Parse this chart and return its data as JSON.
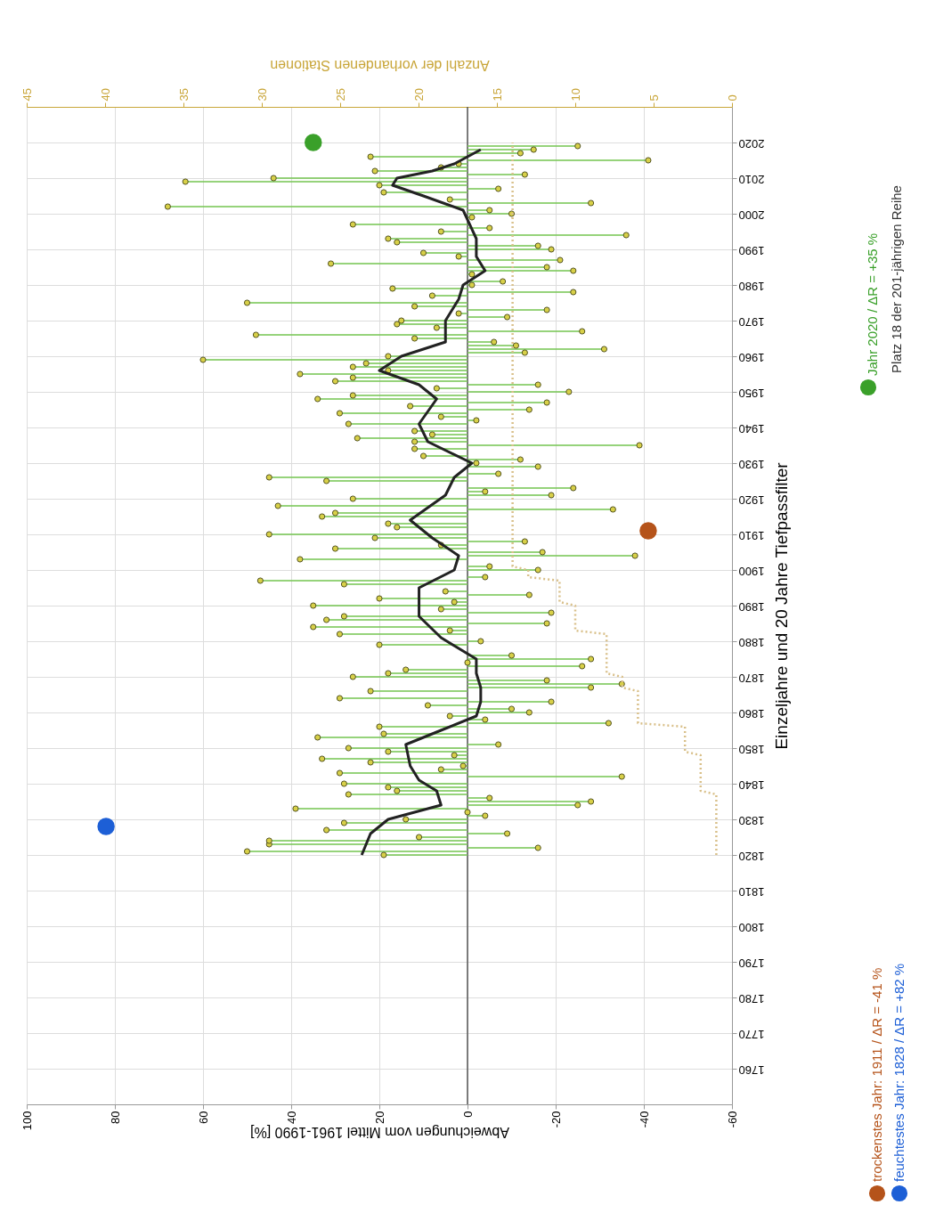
{
  "chart_data": {
    "type": "lollipop",
    "orientation": "horizontal",
    "ylabel": "Einzeljahre und 20 Jahre Tiefpassfilter",
    "xlabel": "Abweichungen vom Mittel 1961-1990 [%]",
    "x2label": "Anzahl der vorhandenen Stationen",
    "ylim": [
      1750,
      2030
    ],
    "yticks": [
      1760,
      1770,
      1780,
      1790,
      1800,
      1810,
      1820,
      1830,
      1840,
      1850,
      1860,
      1870,
      1880,
      1890,
      1900,
      1910,
      1920,
      1930,
      1940,
      1950,
      1960,
      1970,
      1980,
      1990,
      2000,
      2010,
      2020
    ],
    "xlim": [
      100,
      -60
    ],
    "xticks": [
      100,
      80,
      60,
      40,
      20,
      0,
      -20,
      -40,
      -60
    ],
    "x2lim": [
      45,
      0
    ],
    "x2ticks": [
      45,
      40,
      35,
      30,
      25,
      20,
      15,
      10,
      5,
      0
    ],
    "grid": true,
    "legend": "right",
    "ref_lines": [
      {
        "axis": "x",
        "value": 0,
        "color": "#555555"
      }
    ],
    "annotations": [
      "Platz 18 der 201-jährigen Reihe"
    ],
    "series": [
      {
        "color": "#d8d048",
        "marker": "circle",
        "x": [
          1820,
          1821,
          1822,
          1823,
          1824,
          1825,
          1826,
          1827,
          1829,
          1830,
          1831,
          1832,
          1833,
          1834,
          1835,
          1836,
          1837,
          1838,
          1839,
          1840,
          1842,
          1843,
          1844,
          1845,
          1846,
          1847,
          1848,
          1849,
          1850,
          1851,
          1853,
          1854,
          1856,
          1857,
          1858,
          1859,
          1860,
          1861,
          1862,
          1863,
          1864,
          1866,
          1867,
          1868,
          1869,
          1870,
          1871,
          1872,
          1873,
          1874,
          1875,
          1876,
          1879,
          1880,
          1882,
          1883,
          1884,
          1885,
          1886,
          1887,
          1888,
          1889,
          1890,
          1891,
          1892,
          1893,
          1894,
          1896,
          1897,
          1898,
          1900,
          1901,
          1903,
          1904,
          1905,
          1906,
          1907,
          1908,
          1909,
          1910,
          1912,
          1913,
          1915,
          1916,
          1917,
          1918,
          1920,
          1921,
          1922,
          1923,
          1925,
          1926,
          1927,
          1929,
          1930,
          1931,
          1932,
          1934,
          1935,
          1936,
          1937,
          1938,
          1939,
          1941,
          1942,
          1943,
          1944,
          1945,
          1946,
          1947,
          1948,
          1949,
          1950,
          1951,
          1952,
          1953,
          1954,
          1955,
          1956,
          1957,
          1958,
          1959,
          1960,
          1961,
          1962,
          1963,
          1964,
          1965,
          1966,
          1967,
          1968,
          1969,
          1970,
          1971,
          1972,
          1973,
          1974,
          1975,
          1977,
          1978,
          1979,
          1980,
          1981,
          1983,
          1984,
          1985,
          1986,
          1987,
          1988,
          1989,
          1990,
          1991,
          1992,
          1993,
          1994,
          1995,
          1996,
          1997,
          1999,
          2000,
          2001,
          2002,
          2003,
          2004,
          2006,
          2007,
          2008,
          2009,
          2010,
          2011,
          2012,
          2013,
          2014,
          2015,
          2016,
          2017,
          2018,
          2019
        ],
        "values": [
          19,
          50,
          -16,
          45,
          45,
          11,
          -9,
          32,
          28,
          14,
          -4,
          0,
          39,
          -25,
          -28,
          -5,
          27,
          16,
          18,
          28,
          -35,
          29,
          6,
          1,
          22,
          33,
          3,
          18,
          27,
          -7,
          34,
          19,
          20,
          -32,
          -4,
          4,
          -14,
          -10,
          9,
          -19,
          29,
          22,
          -28,
          -35,
          -18,
          26,
          18,
          14,
          -26,
          0,
          -28,
          -10,
          20,
          -3,
          29,
          4,
          35,
          -18,
          32,
          28,
          -19,
          6,
          35,
          3,
          20,
          -14,
          5,
          28,
          47,
          -4,
          -16,
          -5,
          38,
          -38,
          -17,
          30,
          6,
          -13,
          21,
          45,
          16,
          18,
          33,
          30,
          -33,
          43,
          26,
          -19,
          -4,
          -24,
          32,
          45,
          -7,
          -16,
          -2,
          -12,
          10,
          12,
          -39,
          12,
          25,
          8,
          12,
          27,
          -2,
          6,
          29,
          -14,
          13,
          -18,
          34,
          26,
          -23,
          7,
          -16,
          30,
          26,
          38,
          18,
          26,
          23,
          60,
          18,
          -13,
          -31,
          -11,
          -6,
          12,
          48,
          -26,
          7,
          16,
          15,
          -9,
          2,
          -18,
          12,
          50,
          8,
          -24,
          17,
          -1,
          -8,
          -1,
          -24,
          -18,
          31,
          -21,
          2,
          10,
          -19,
          -16,
          16,
          18,
          -36,
          6,
          -5,
          26,
          -1,
          -10,
          -5,
          68,
          -28,
          4,
          19,
          -7,
          20,
          64,
          44,
          -13,
          21,
          6,
          2,
          -41,
          22,
          -12,
          -15,
          -25
        ]
      },
      {
        "type": "line",
        "color": "#222222",
        "line_style": "solid",
        "x": [
          1820,
          1823,
          1826,
          1828,
          1830,
          1834,
          1838,
          1841,
          1845,
          1851,
          1855,
          1859,
          1863,
          1867,
          1871,
          1875,
          1881,
          1887,
          1891,
          1895,
          1900,
          1904,
          1909,
          1914,
          1921,
          1926,
          1930,
          1936,
          1941,
          1948,
          1952,
          1956,
          1960,
          1964,
          1970,
          1976,
          1980,
          1984,
          1988,
          1993,
          2001,
          2005,
          2008,
          2010,
          2012,
          2014,
          2016,
          2018
        ],
        "values": [
          24,
          23,
          22,
          20,
          18,
          6,
          7,
          11,
          13,
          14,
          6,
          -2,
          -3,
          -3,
          -2,
          -2,
          6,
          11,
          11,
          11,
          3,
          2,
          8,
          13,
          5,
          3,
          -1,
          9,
          11,
          7,
          11,
          20,
          15,
          5,
          5,
          2,
          1,
          -4,
          -2,
          -2,
          1,
          10,
          17,
          16,
          8,
          3,
          0,
          -3
        ]
      },
      {
        "type": "line",
        "axis": "x2",
        "color": "#d9c08a",
        "line_style": "dotted",
        "x": [
          1820,
          1837,
          1838,
          1848,
          1849,
          1856,
          1857,
          1866,
          1867,
          1870,
          1871,
          1882,
          1883,
          1890,
          1891,
          1897,
          1898,
          1900,
          1901,
          2020
        ],
        "values": [
          1,
          1,
          2,
          2,
          3,
          3,
          6,
          6,
          7,
          7,
          8,
          8,
          10,
          10,
          11,
          11,
          13,
          13,
          14,
          14
        ]
      },
      {
        "type": "scatter",
        "marker": "circle",
        "name": "trockenstes Jahr: 1911 / ΔR = -41 %",
        "color": "#b5531a",
        "x": [
          1911
        ],
        "values": [
          -41
        ]
      },
      {
        "type": "scatter",
        "marker": "circle",
        "name": "feuchtestes Jahr: 1828 / ΔR = +82 %",
        "color": "#1d5fd6",
        "x": [
          1828
        ],
        "values": [
          82
        ]
      },
      {
        "type": "scatter",
        "marker": "circle",
        "name": "Jahr 2020 / ΔR = +35 %",
        "color": "#3aa02a",
        "x": [
          2020
        ],
        "values": [
          35
        ]
      }
    ]
  }
}
